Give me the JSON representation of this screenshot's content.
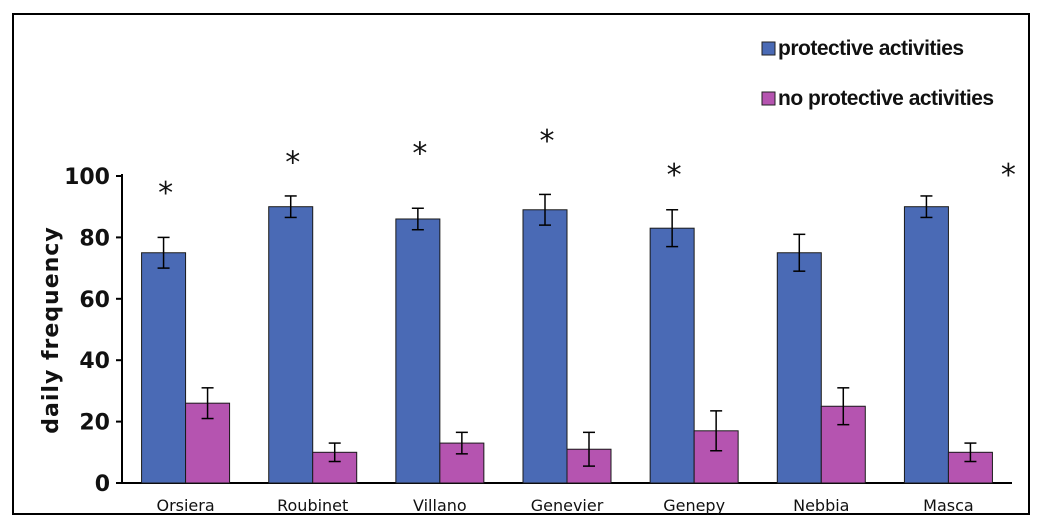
{
  "chart_data": {
    "type": "bar",
    "title": "",
    "xlabel": "",
    "ylabel": "daily frequency",
    "ylim": [
      0,
      100
    ],
    "yticks": [
      0,
      20,
      40,
      60,
      80,
      100
    ],
    "grid": false,
    "legend_position": "top-right",
    "error_bars": true,
    "categories": [
      "Orsiera",
      "Roubinet",
      "Villano",
      "Genevier",
      "Genepy",
      "Nebbia",
      "Masca"
    ],
    "series": [
      {
        "name": "protective activities",
        "color": "#4a6ab5",
        "values": [
          75,
          90,
          86,
          89,
          83,
          75,
          90
        ],
        "errors": [
          5,
          3.5,
          3.5,
          5,
          6,
          6,
          3.5
        ]
      },
      {
        "name": "no protective activities",
        "color": "#b554b0",
        "values": [
          26,
          10,
          13,
          11,
          17,
          25,
          10
        ],
        "errors": [
          5,
          3,
          3.5,
          5.5,
          6.5,
          6,
          3
        ]
      }
    ],
    "significance": {
      "symbol": "*",
      "marks": [
        {
          "category": "Orsiera",
          "y": 97
        },
        {
          "category": "Roubinet",
          "y": 107
        },
        {
          "category": "Villano",
          "y": 110
        },
        {
          "category": "Genevier",
          "y": 114
        },
        {
          "category": "Genepy",
          "y": 103
        },
        {
          "category": "Masca",
          "y": 103
        }
      ]
    }
  }
}
